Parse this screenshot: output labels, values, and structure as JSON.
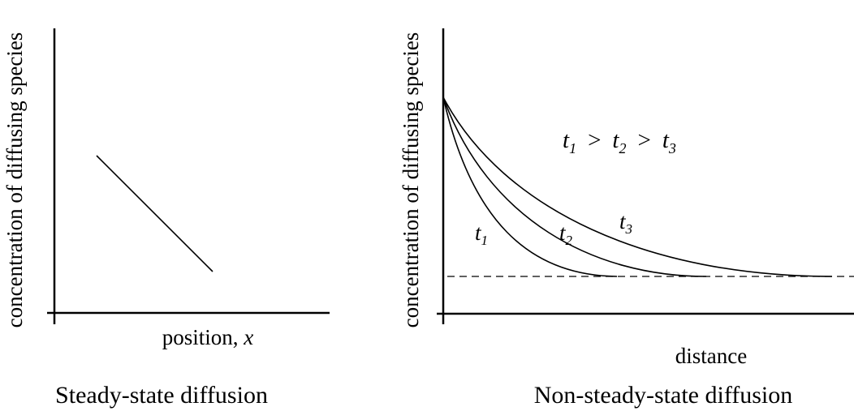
{
  "left_panel": {
    "title": "Steady-state diffusion",
    "ylabel": "concentration of diffusing species",
    "xlabel_text": "position, ",
    "xlabel_var": "x"
  },
  "right_panel": {
    "title": "Non-steady-state diffusion",
    "ylabel": "concentration of diffusing species",
    "xlabel": "distance",
    "relation": {
      "t": "t",
      "sub1": "1",
      "sub2": "2",
      "sub3": "3",
      "gt": ">"
    },
    "curve_labels": [
      {
        "t": "t",
        "sub": "1"
      },
      {
        "t": "t",
        "sub": "2"
      },
      {
        "t": "t",
        "sub": "3"
      }
    ]
  },
  "colors": {
    "line": "#000000",
    "background": "#ffffff"
  }
}
